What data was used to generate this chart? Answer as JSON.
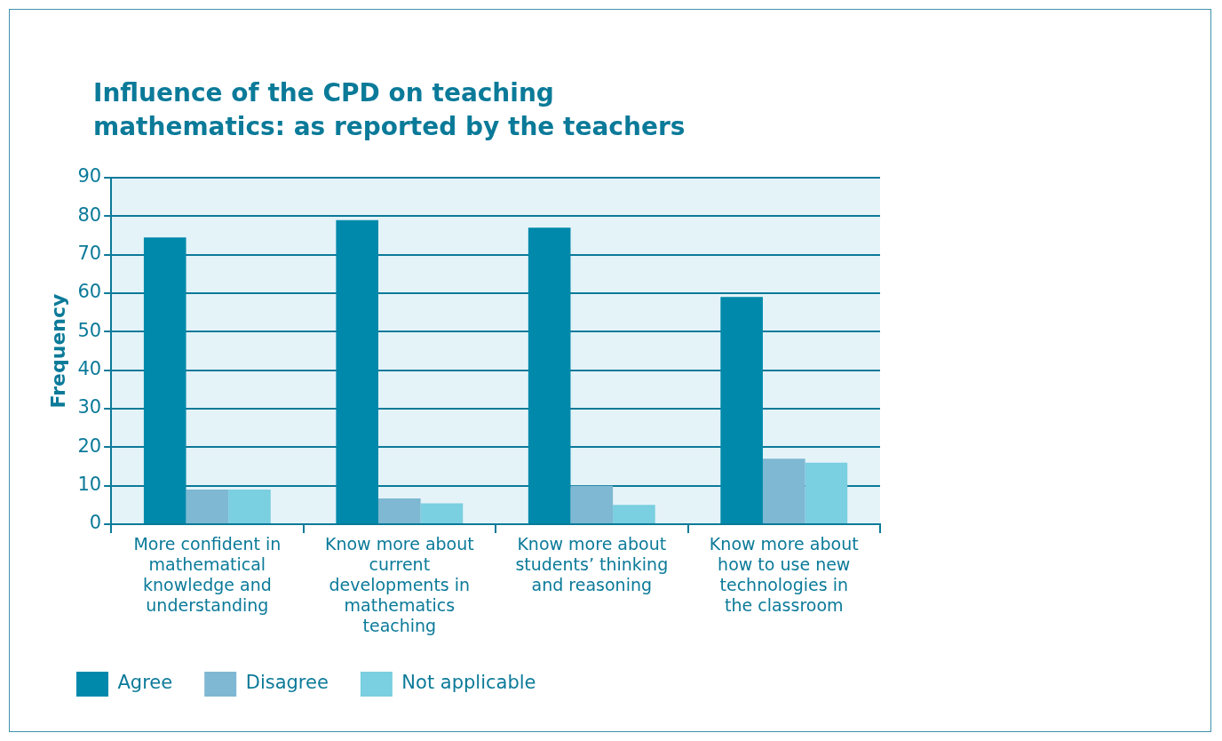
{
  "chart_data": {
    "type": "bar",
    "title": "Influence of the CPD on teaching mathematics: as reported by the teachers",
    "ylabel": "Frequency",
    "categories": [
      "More confident in mathematical knowledge and understanding",
      "Know more about current developments in mathematics teaching",
      "Know more about students’ thinking and reasoning",
      "Know more about how to use new technologies in the classroom"
    ],
    "series": [
      {
        "name": "Agree",
        "color": "#0089ab",
        "values": [
          74.5,
          79,
          77,
          59
        ]
      },
      {
        "name": "Disagree",
        "color": "#7eb8d2",
        "values": [
          9,
          6.7,
          10,
          17
        ]
      },
      {
        "name": "Not applicable",
        "color": "#7acfe0",
        "values": [
          9,
          5.4,
          5,
          16
        ]
      }
    ],
    "ylim": [
      0,
      90
    ],
    "yticks": [
      0,
      10,
      20,
      30,
      40,
      50,
      60,
      70,
      80,
      90
    ],
    "grid": "y",
    "legend": "bottom left"
  }
}
